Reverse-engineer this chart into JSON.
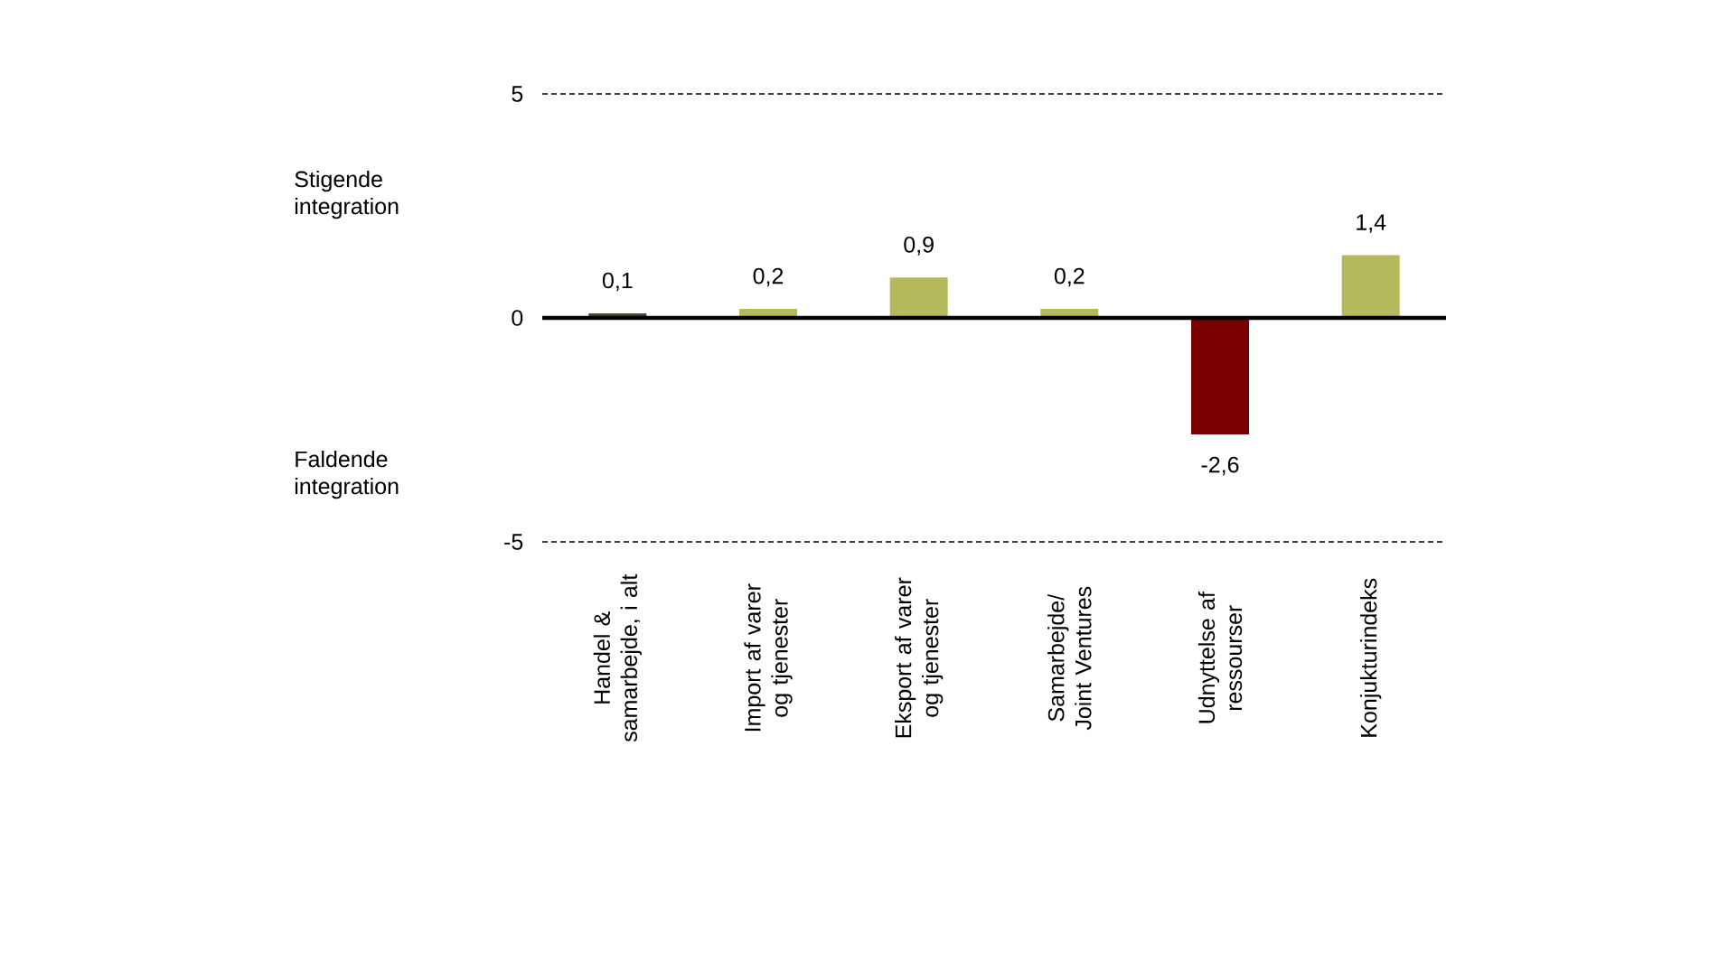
{
  "chart_data": {
    "type": "bar",
    "categories": [
      "Handel & samarbejde, i alt",
      "Import af varer og tjenester",
      "Eksport af varer og tjenester",
      "Samarbejde/ Joint Ventures",
      "Udnyttelse af ressourser",
      "Konjukturindeks"
    ],
    "values": [
      0.1,
      0.2,
      0.9,
      0.2,
      -2.6,
      1.4
    ],
    "value_labels": [
      "0,1",
      "0,2",
      "0,9",
      "0,2",
      "-2,6",
      "1,4"
    ],
    "colors": [
      "#4a4a3a",
      "#b4b95c",
      "#b4b95c",
      "#b4b95c",
      "#7a0000",
      "#b4b95c"
    ],
    "ylim": [
      -5,
      5
    ],
    "yticks": [
      5,
      0,
      -5
    ],
    "ref_lines": [
      {
        "axis": "y",
        "value": 5,
        "color": "#000000",
        "line_style": "dashed"
      },
      {
        "axis": "y",
        "value": -5,
        "color": "#000000",
        "line_style": "dashed"
      },
      {
        "axis": "y",
        "value": 0,
        "color": "#000000"
      }
    ],
    "annotations": [
      "Stigende integration",
      "Faldende integration"
    ]
  }
}
